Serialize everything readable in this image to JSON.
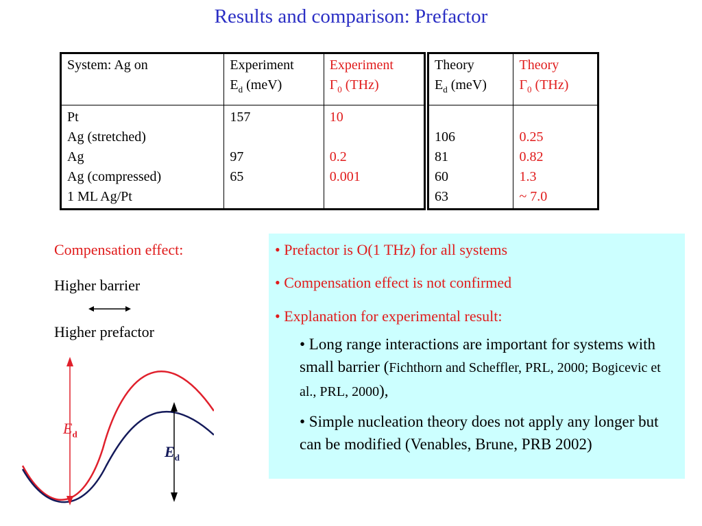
{
  "title": "Results and comparison: Prefactor",
  "table_left": {
    "headers": {
      "system": "System: Ag on",
      "exp_ed_line1": "Experiment",
      "exp_ed_sym": "E",
      "exp_ed_sub": "d",
      "exp_ed_unit": " (meV)",
      "exp_g0_line1": "Experiment",
      "exp_g0_sym": "Γ",
      "exp_g0_sub": "0",
      "exp_g0_unit": " (THz)"
    },
    "systems": [
      "Pt",
      "Ag (stretched)",
      "Ag",
      "Ag (compressed)",
      "1 ML Ag/Pt"
    ],
    "exp_ed": [
      "157",
      "",
      "97",
      "65",
      ""
    ],
    "exp_g0": [
      "10",
      "",
      "0.2",
      "0.001",
      ""
    ]
  },
  "table_right": {
    "headers": {
      "th_ed_line1": "Theory",
      "th_ed_sym": "E",
      "th_ed_sub": "d",
      "th_ed_unit": " (meV)",
      "th_g0_line1": "Theory",
      "th_g0_sym": "Γ",
      "th_g0_sub": "0",
      "th_g0_unit": " (THz)"
    },
    "th_ed": [
      "",
      "106",
      "81",
      "60",
      "63"
    ],
    "th_g0": [
      "",
      "0.25",
      "0.82",
      "1.3",
      "~ 7.0"
    ]
  },
  "compensation": {
    "heading": "Compensation effect:",
    "line1": "Higher barrier",
    "line2": "Higher prefactor",
    "arrow_icon": "double-arrow-icon"
  },
  "figure": {
    "label_red_sym": "E",
    "label_red_sub": "d",
    "label_black_sym": "E",
    "label_black_sub": "d"
  },
  "bullets": [
    "• Prefactor is O(1 THz) for all systems",
    "• Compensation effect is not confirmed",
    "• Explanation for experimental result:"
  ],
  "sub_bullets": {
    "first_main": "• Long range interactions are important for systems with small barrier (",
    "first_cite": "Fichthorn and Scheffler, PRL, 2000; Bogicevic et al., PRL, 2000",
    "first_end": "),",
    "second": "• Simple nucleation theory does not apply any longer but can be modified (Venables, Brune, PRB 2002)"
  },
  "colors": {
    "title": "#2a2ec4",
    "accent_red": "#e01b1b",
    "panel_bg": "#ccffff",
    "curve_red": "#e0202c",
    "curve_navy": "#141a5a"
  }
}
